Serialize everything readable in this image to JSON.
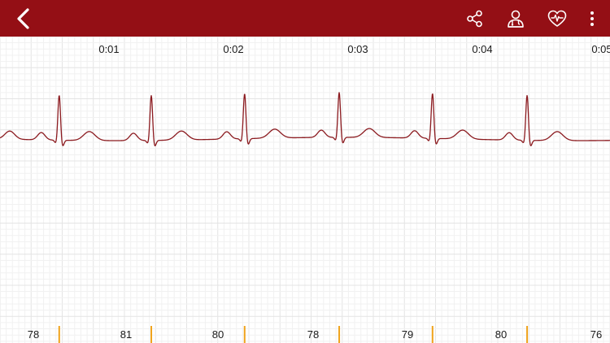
{
  "toolbar": {
    "background": "#940f15",
    "icons": [
      "back-chevron-icon",
      "share-icon",
      "doctor-icon",
      "heart-pulse-icon",
      "more-vertical-icon"
    ]
  },
  "chart_data": {
    "type": "line",
    "time_labels": [
      "0:01",
      "0:02",
      "0:03",
      "0:04",
      "0:05"
    ],
    "heart_rates": [
      "78",
      "81",
      "80",
      "78",
      "79",
      "80",
      "76"
    ],
    "beat_times_s": [
      0.6,
      1.34,
      2.09,
      2.85,
      3.6,
      4.36
    ],
    "trace_color": "#8b1a1f",
    "marker_color": "#f0a31b",
    "grid": true
  }
}
